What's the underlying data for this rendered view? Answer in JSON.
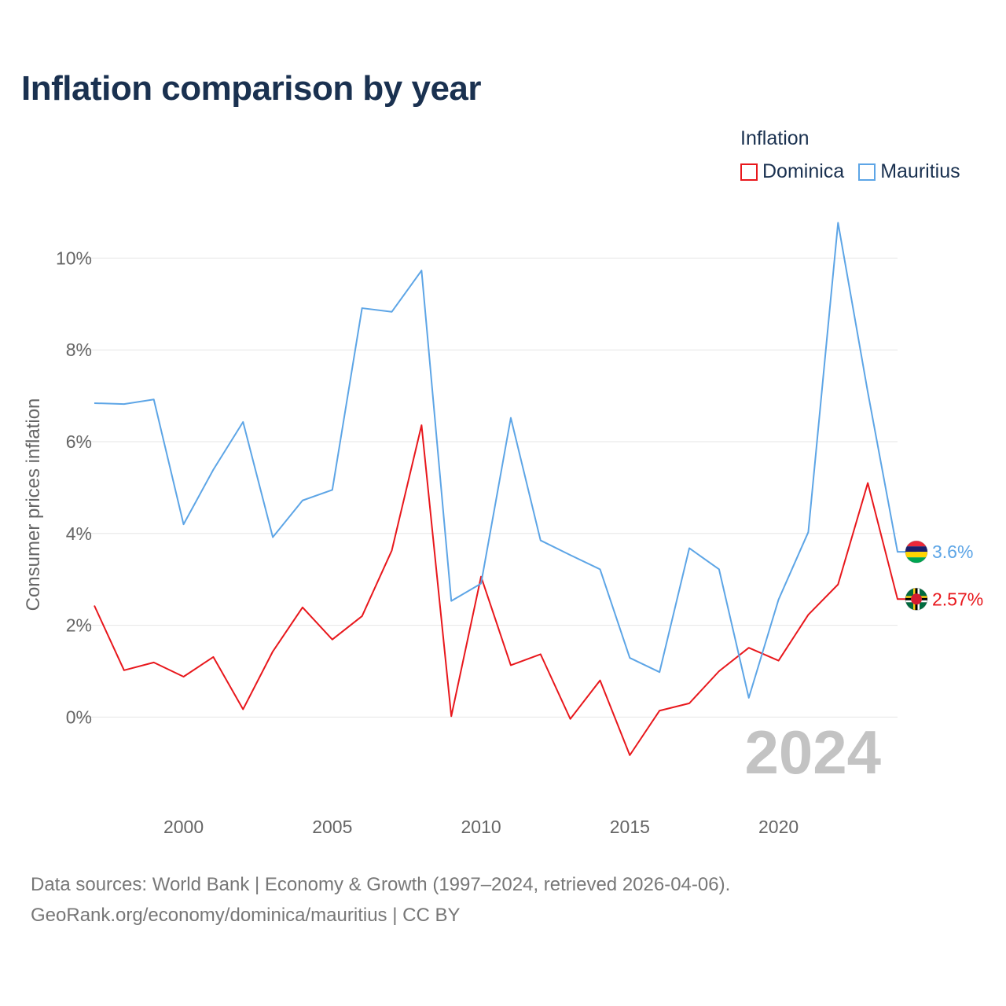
{
  "title": "Inflation comparison by year",
  "legend": {
    "title": "Inflation",
    "items": [
      {
        "name": "Dominica",
        "color": "#e8171c"
      },
      {
        "name": "Mauritius",
        "color": "#5da5e6"
      }
    ]
  },
  "footer": {
    "line1": "Data sources: World Bank | Economy & Growth (1997–2024, retrieved 2026-04-06).",
    "line2": "GeoRank.org/economy/dominica/mauritius | CC BY"
  },
  "chart_data": {
    "type": "line",
    "title": "Inflation comparison by year",
    "xlabel": "",
    "ylabel": "Consumer prices inflation",
    "year_label": "2024",
    "xlim": [
      1997,
      2024
    ],
    "ylim": [
      -1.5,
      11
    ],
    "x_ticks": [
      2000,
      2005,
      2010,
      2015,
      2020
    ],
    "x_tick_labels": [
      "2000",
      "2005",
      "2010",
      "2015",
      "2020"
    ],
    "y_ticks": [
      0,
      2,
      4,
      6,
      8,
      10
    ],
    "y_tick_labels": [
      "0%",
      "2%",
      "4%",
      "6%",
      "8%",
      "10%"
    ],
    "grid": true,
    "x": [
      1997,
      1998,
      1999,
      2000,
      2001,
      2002,
      2003,
      2004,
      2005,
      2006,
      2007,
      2008,
      2009,
      2010,
      2011,
      2012,
      2013,
      2014,
      2015,
      2016,
      2017,
      2018,
      2019,
      2020,
      2021,
      2022,
      2023,
      2024
    ],
    "series": [
      {
        "name": "Dominica",
        "color": "#e8171c",
        "end_label": "2.57%",
        "values": [
          2.43,
          1.02,
          1.19,
          0.88,
          1.31,
          0.17,
          1.43,
          2.39,
          1.69,
          2.2,
          3.63,
          6.36,
          0.02,
          3.06,
          1.13,
          1.37,
          -0.04,
          0.8,
          -0.83,
          0.14,
          0.3,
          1.0,
          1.51,
          1.23,
          2.23,
          2.89,
          5.1,
          2.57
        ]
      },
      {
        "name": "Mauritius",
        "color": "#5da5e6",
        "end_label": "3.6%",
        "values": [
          6.84,
          6.82,
          6.92,
          4.2,
          5.39,
          6.43,
          3.92,
          4.72,
          4.95,
          8.91,
          8.83,
          9.73,
          2.53,
          2.91,
          6.52,
          3.85,
          3.53,
          3.22,
          1.29,
          0.98,
          3.68,
          3.22,
          0.42,
          2.56,
          4.03,
          10.77,
          7.08,
          3.6
        ]
      }
    ]
  }
}
